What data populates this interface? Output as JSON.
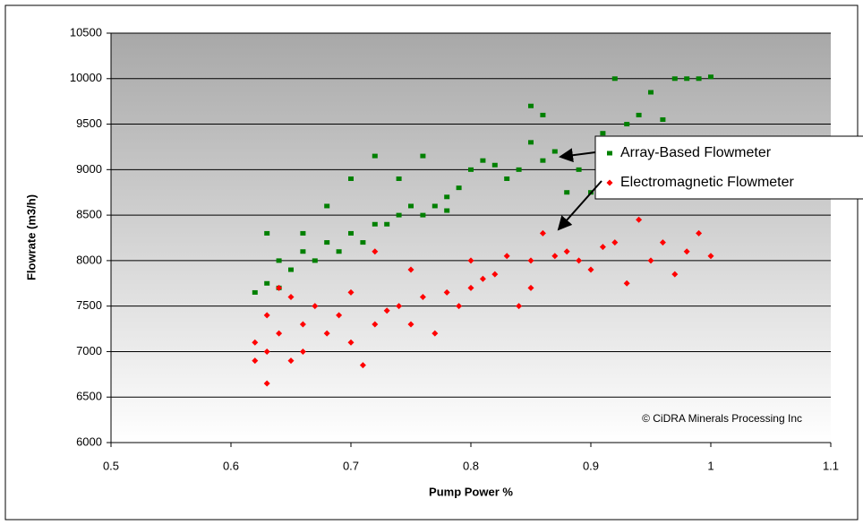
{
  "chart_data": {
    "type": "scatter",
    "xlabel": "Pump Power %",
    "ylabel": "Flowrate (m3/h)",
    "annotation": "© CiDRA Minerals Processing Inc",
    "xlim": [
      0.5,
      1.1
    ],
    "xticks": [
      0.5,
      0.6,
      0.7,
      0.8,
      0.9,
      1,
      1.1
    ],
    "ylim": [
      6000,
      10500
    ],
    "yticks": [
      6000,
      6500,
      7000,
      7500,
      8000,
      8500,
      9000,
      9500,
      10000,
      10500
    ],
    "grid": true,
    "legend": "right",
    "series": [
      {
        "name": "Array-Based Flowmeter",
        "color": "#008000",
        "marker": "square",
        "x": [
          0.62,
          0.63,
          0.63,
          0.64,
          0.64,
          0.65,
          0.66,
          0.66,
          0.67,
          0.68,
          0.68,
          0.69,
          0.7,
          0.7,
          0.71,
          0.72,
          0.72,
          0.73,
          0.74,
          0.74,
          0.75,
          0.76,
          0.76,
          0.77,
          0.78,
          0.78,
          0.79,
          0.8,
          0.81,
          0.82,
          0.83,
          0.84,
          0.85,
          0.85,
          0.86,
          0.86,
          0.87,
          0.88,
          0.89,
          0.9,
          0.91,
          0.92,
          0.93,
          0.94,
          0.95,
          0.96,
          0.97,
          0.98,
          0.99,
          1.0
        ],
        "values": [
          7650,
          7750,
          8300,
          7700,
          8000,
          7900,
          8100,
          8300,
          8000,
          8200,
          8600,
          8100,
          8300,
          8900,
          8200,
          8400,
          9150,
          8400,
          8500,
          8900,
          8600,
          8500,
          9150,
          8600,
          8550,
          8700,
          8800,
          9000,
          9100,
          9050,
          8900,
          9000,
          9300,
          9700,
          9100,
          9600,
          9200,
          8750,
          9000,
          8750,
          9400,
          10000,
          9500,
          9600,
          9850,
          9550,
          10000,
          10000,
          10000,
          10020
        ]
      },
      {
        "name": "Electromagnetic Flowmeter",
        "color": "#ff0000",
        "marker": "diamond",
        "x": [
          0.62,
          0.62,
          0.63,
          0.63,
          0.63,
          0.64,
          0.64,
          0.65,
          0.65,
          0.66,
          0.66,
          0.67,
          0.68,
          0.69,
          0.7,
          0.7,
          0.71,
          0.72,
          0.72,
          0.73,
          0.74,
          0.75,
          0.75,
          0.76,
          0.77,
          0.78,
          0.79,
          0.8,
          0.8,
          0.81,
          0.82,
          0.83,
          0.84,
          0.85,
          0.85,
          0.86,
          0.87,
          0.88,
          0.89,
          0.9,
          0.91,
          0.92,
          0.93,
          0.94,
          0.95,
          0.96,
          0.97,
          0.98,
          0.99,
          1.0
        ],
        "values": [
          7100,
          6900,
          7000,
          7400,
          6650,
          7200,
          7700,
          6900,
          7600,
          7300,
          7000,
          7500,
          7200,
          7400,
          7100,
          7650,
          6850,
          7300,
          8100,
          7450,
          7500,
          7300,
          7900,
          7600,
          7200,
          7650,
          7500,
          7700,
          8000,
          7800,
          7850,
          8050,
          7500,
          8000,
          7700,
          8300,
          8050,
          8100,
          8000,
          7900,
          8150,
          8200,
          7750,
          8450,
          8000,
          8200,
          7850,
          8100,
          8300,
          8050
        ]
      }
    ]
  }
}
